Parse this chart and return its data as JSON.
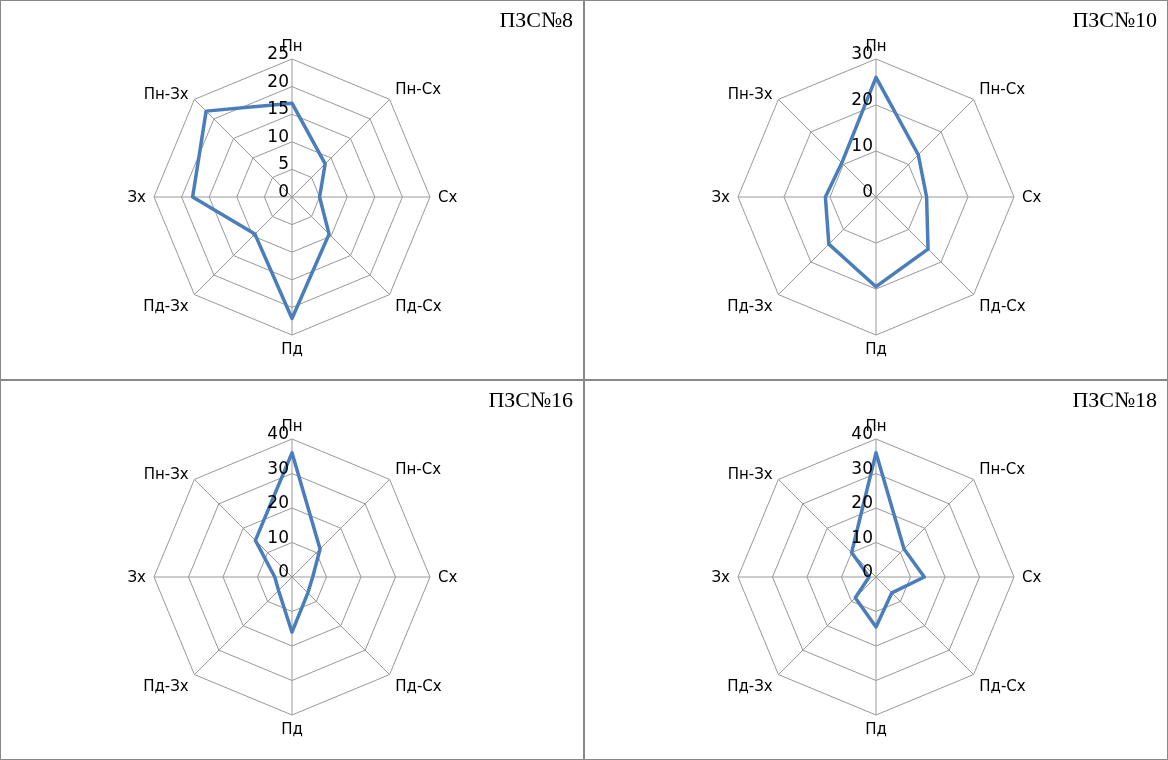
{
  "chart_data": [
    {
      "type": "radar",
      "title": "ПЗС№8",
      "categories": [
        "Пн",
        "Пн-Сх",
        "Сх",
        "Пд-Сх",
        "Пд",
        "Пд-Зх",
        "Зх",
        "Пн-Зх"
      ],
      "series": [
        {
          "color": "#4a7ebb",
          "values": [
            17,
            8.5,
            5,
            9.5,
            22,
            9.5,
            18,
            22
          ]
        }
      ],
      "ylim": [
        0,
        25
      ],
      "yticks": [
        0,
        5,
        10,
        15,
        20,
        25
      ],
      "grid": true,
      "marker": "none"
    },
    {
      "type": "radar",
      "title": "ПЗС№10",
      "categories": [
        "Пн",
        "Пн-Сх",
        "Сх",
        "Пд-Сх",
        "Пд",
        "Пд-Зх",
        "Зх",
        "Пн-Зх"
      ],
      "series": [
        {
          "color": "#4a7ebb",
          "values": [
            26,
            13,
            11,
            16,
            19.5,
            14.5,
            11,
            10.5
          ]
        }
      ],
      "ylim": [
        0,
        30
      ],
      "yticks": [
        0,
        10,
        20,
        30
      ],
      "grid": true,
      "marker": "none"
    },
    {
      "type": "radar",
      "title": "ПЗС№16",
      "categories": [
        "Пн",
        "Пн-Сх",
        "Сх",
        "Пд-Сх",
        "Пд",
        "Пд-Зх",
        "Зх",
        "Пн-Зх"
      ],
      "series": [
        {
          "color": "#4a7ebb",
          "values": [
            36,
            11.5,
            6,
            6.5,
            16,
            5.5,
            5,
            15
          ]
        }
      ],
      "ylim": [
        0,
        40
      ],
      "yticks": [
        0,
        10,
        20,
        30,
        40
      ],
      "grid": true,
      "marker": "none"
    },
    {
      "type": "radar",
      "title": "ПЗС№18",
      "categories": [
        "Пн",
        "Пн-Сх",
        "Сх",
        "Пд-Сх",
        "Пд",
        "Пд-Зх",
        "Зх",
        "Пн-Зх"
      ],
      "series": [
        {
          "color": "#4a7ebb",
          "values": [
            36,
            11.5,
            14,
            6.5,
            14.5,
            8.5,
            2,
            10
          ]
        }
      ],
      "ylim": [
        0,
        40
      ],
      "yticks": [
        0,
        10,
        20,
        30,
        40
      ],
      "grid": true,
      "marker": "none"
    }
  ]
}
